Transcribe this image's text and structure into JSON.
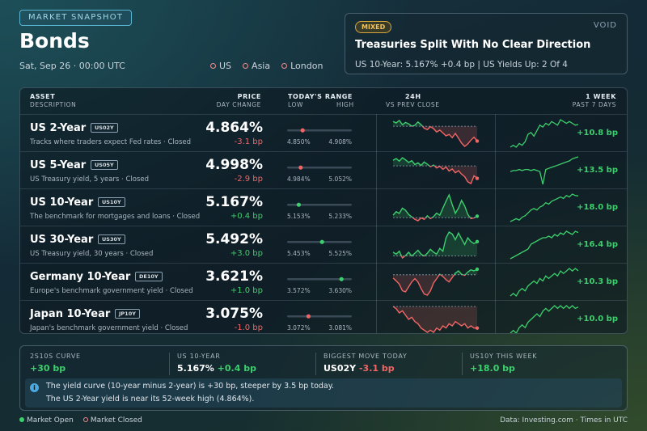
{
  "header": {
    "badge": "MARKET SNAPSHOT",
    "title": "Bonds",
    "date": "Sat, Sep 26 · 00:00 UTC",
    "sessions": [
      "US",
      "Asia",
      "London"
    ]
  },
  "news": {
    "tag": "MIXED",
    "brand": "VOID",
    "headline": "Treasuries Split With No Clear Direction",
    "subline": "US 10-Year: 5.167% +0.4 bp | US Yields Up: 2 Of 4"
  },
  "columns": {
    "asset": "ASSET",
    "description": "DESCRIPTION",
    "price": "PRICE",
    "day_change": "DAY CHANGE",
    "range": "TODAY'S RANGE",
    "low": "LOW",
    "high": "HIGH",
    "intraday": "24H",
    "intraday_sub": "VS PREV CLOSE",
    "week": "1 WEEK",
    "week_sub": "PAST 7 DAYS"
  },
  "colors": {
    "up": "#3ccf6c",
    "down": "#f26565",
    "accent": "#58b6d3"
  },
  "rows": [
    {
      "name": "US 2-Year",
      "ticker": "US02Y",
      "desc": "Tracks where traders expect Fed rates  ·  Closed",
      "price": "4.864%",
      "change": "-3.1 bp",
      "dir": "down",
      "low": "4.850%",
      "high": "4.908%",
      "range_pos": 0.24,
      "week_change": "+10.8 bp",
      "intraday": [
        4.905,
        4.902,
        4.907,
        4.898,
        4.903,
        4.9,
        4.895,
        4.897,
        4.904,
        4.898,
        4.891,
        4.888,
        4.894,
        4.89,
        4.883,
        4.887,
        4.881,
        4.875,
        4.878,
        4.871,
        4.88,
        4.87,
        4.86,
        4.853,
        4.858,
        4.866,
        4.872,
        4.864
      ],
      "prev_close": 4.895,
      "week": [
        4.74,
        4.75,
        4.74,
        4.76,
        4.75,
        4.77,
        4.81,
        4.82,
        4.8,
        4.83,
        4.86,
        4.85,
        4.87,
        4.86,
        4.88,
        4.87,
        4.86,
        4.89,
        4.88,
        4.87,
        4.88,
        4.87,
        4.86,
        4.864
      ]
    },
    {
      "name": "US 5-Year",
      "ticker": "US05Y",
      "desc": "US Treasury yield, 5 years  ·  Closed",
      "price": "4.998%",
      "change": "-2.9 bp",
      "dir": "down",
      "low": "4.984%",
      "high": "5.052%",
      "range_pos": 0.21,
      "week_change": "+13.5 bp",
      "intraday": [
        5.04,
        5.044,
        5.038,
        5.046,
        5.041,
        5.035,
        5.039,
        5.03,
        5.034,
        5.028,
        5.036,
        5.031,
        5.025,
        5.029,
        5.022,
        5.026,
        5.019,
        5.024,
        5.015,
        5.02,
        5.011,
        5.016,
        5.008,
        5.002,
        4.99,
        4.986,
        5.004,
        4.998
      ],
      "prev_close": 5.027,
      "week": [
        4.86,
        4.87,
        4.87,
        4.88,
        4.87,
        4.88,
        4.88,
        4.87,
        4.88,
        4.87,
        4.86,
        4.74,
        4.88,
        4.89,
        4.9,
        4.91,
        4.92,
        4.93,
        4.94,
        4.95,
        4.96,
        4.98,
        4.99,
        4.998
      ]
    },
    {
      "name": "US 10-Year",
      "ticker": "US10Y",
      "desc": "The benchmark for mortgages and loans  ·  Closed",
      "price": "5.167%",
      "change": "+0.4 bp",
      "dir": "up",
      "low": "5.153%",
      "high": "5.233%",
      "range_pos": 0.18,
      "week_change": "+18.0 bp",
      "intraday": [
        5.17,
        5.18,
        5.175,
        5.19,
        5.184,
        5.172,
        5.165,
        5.158,
        5.154,
        5.162,
        5.158,
        5.168,
        5.16,
        5.166,
        5.176,
        5.17,
        5.19,
        5.21,
        5.228,
        5.2,
        5.175,
        5.19,
        5.212,
        5.196,
        5.172,
        5.16,
        5.162,
        5.167
      ],
      "prev_close": 5.163,
      "week": [
        4.99,
        5.0,
        5.01,
        5.0,
        5.02,
        5.03,
        5.05,
        5.07,
        5.08,
        5.07,
        5.09,
        5.1,
        5.12,
        5.11,
        5.13,
        5.14,
        5.15,
        5.16,
        5.15,
        5.17,
        5.16,
        5.18,
        5.17,
        5.167
      ]
    },
    {
      "name": "US 30-Year",
      "ticker": "US30Y",
      "desc": "US Treasury yield, 30 years  ·  Closed",
      "price": "5.492%",
      "change": "+3.0 bp",
      "dir": "up",
      "low": "5.453%",
      "high": "5.525%",
      "range_pos": 0.54,
      "week_change": "+16.4 bp",
      "intraday": [
        5.47,
        5.466,
        5.472,
        5.458,
        5.463,
        5.47,
        5.462,
        5.468,
        5.474,
        5.466,
        5.462,
        5.468,
        5.476,
        5.47,
        5.466,
        5.478,
        5.472,
        5.5,
        5.512,
        5.508,
        5.496,
        5.51,
        5.498,
        5.486,
        5.5,
        5.492,
        5.488,
        5.492
      ],
      "prev_close": 5.462,
      "week": [
        5.33,
        5.34,
        5.35,
        5.36,
        5.37,
        5.38,
        5.39,
        5.42,
        5.43,
        5.44,
        5.45,
        5.46,
        5.46,
        5.47,
        5.46,
        5.48,
        5.47,
        5.49,
        5.48,
        5.5,
        5.49,
        5.48,
        5.5,
        5.492
      ]
    },
    {
      "name": "Germany 10-Year",
      "ticker": "DE10Y",
      "desc": "Europe's benchmark government yield  ·  Closed",
      "price": "3.621%",
      "change": "+1.0 bp",
      "dir": "up",
      "low": "3.572%",
      "high": "3.630%",
      "range_pos": 0.84,
      "week_change": "+10.3 bp",
      "intraday": [
        3.605,
        3.6,
        3.594,
        3.582,
        3.58,
        3.589,
        3.598,
        3.604,
        3.598,
        3.586,
        3.576,
        3.574,
        3.582,
        3.596,
        3.604,
        3.612,
        3.608,
        3.602,
        3.598,
        3.606,
        3.614,
        3.618,
        3.612,
        3.61,
        3.616,
        3.62,
        3.618,
        3.621
      ],
      "prev_close": 3.611,
      "week": [
        3.52,
        3.53,
        3.52,
        3.54,
        3.55,
        3.54,
        3.56,
        3.57,
        3.58,
        3.57,
        3.59,
        3.58,
        3.6,
        3.59,
        3.6,
        3.61,
        3.6,
        3.62,
        3.61,
        3.62,
        3.63,
        3.62,
        3.63,
        3.621
      ]
    },
    {
      "name": "Japan 10-Year",
      "ticker": "JP10Y",
      "desc": "Japan's benchmark government yield  ·  Closed",
      "price": "3.075%",
      "change": "-1.0 bp",
      "dir": "down",
      "low": "3.072%",
      "high": "3.081%",
      "range_pos": 0.33,
      "week_change": "+10.0 bp",
      "intraday": [
        3.085,
        3.084,
        3.082,
        3.083,
        3.081,
        3.079,
        3.08,
        3.078,
        3.077,
        3.075,
        3.074,
        3.073,
        3.074,
        3.073,
        3.075,
        3.074,
        3.076,
        3.075,
        3.077,
        3.076,
        3.078,
        3.077,
        3.076,
        3.077,
        3.075,
        3.076,
        3.075,
        3.075
      ],
      "prev_close": 3.085,
      "week": [
        2.98,
        2.99,
        2.98,
        3.0,
        3.01,
        3.0,
        3.02,
        3.03,
        3.04,
        3.05,
        3.04,
        3.06,
        3.07,
        3.06,
        3.07,
        3.08,
        3.07,
        3.08,
        3.07,
        3.08,
        3.07,
        3.08,
        3.07,
        3.075
      ]
    }
  ],
  "summary": {
    "stats": [
      {
        "label": "2S10S CURVE",
        "value": "+30 bp",
        "extra": "",
        "color": "up"
      },
      {
        "label": "US 10-YEAR",
        "value": "5.167%",
        "extra": "+0.4 bp",
        "color": "up"
      },
      {
        "label": "BIGGEST MOVE TODAY",
        "value": "US02Y",
        "extra": "-3.1 bp",
        "color": "down"
      },
      {
        "label": "US10Y THIS WEEK",
        "value": "+18.0 bp",
        "extra": "",
        "color": "up"
      }
    ],
    "info_icon": "i",
    "info_line1": "The yield curve (10-year minus 2-year) is +30 bp, steeper by 3.5 bp today.",
    "info_line2": "The US 2-Year yield is near its 52-week high (4.864%)."
  },
  "footer": {
    "market_open": "Market Open",
    "market_closed": "Market Closed",
    "source": "Data: Investing.com  ·  Times in UTC"
  }
}
